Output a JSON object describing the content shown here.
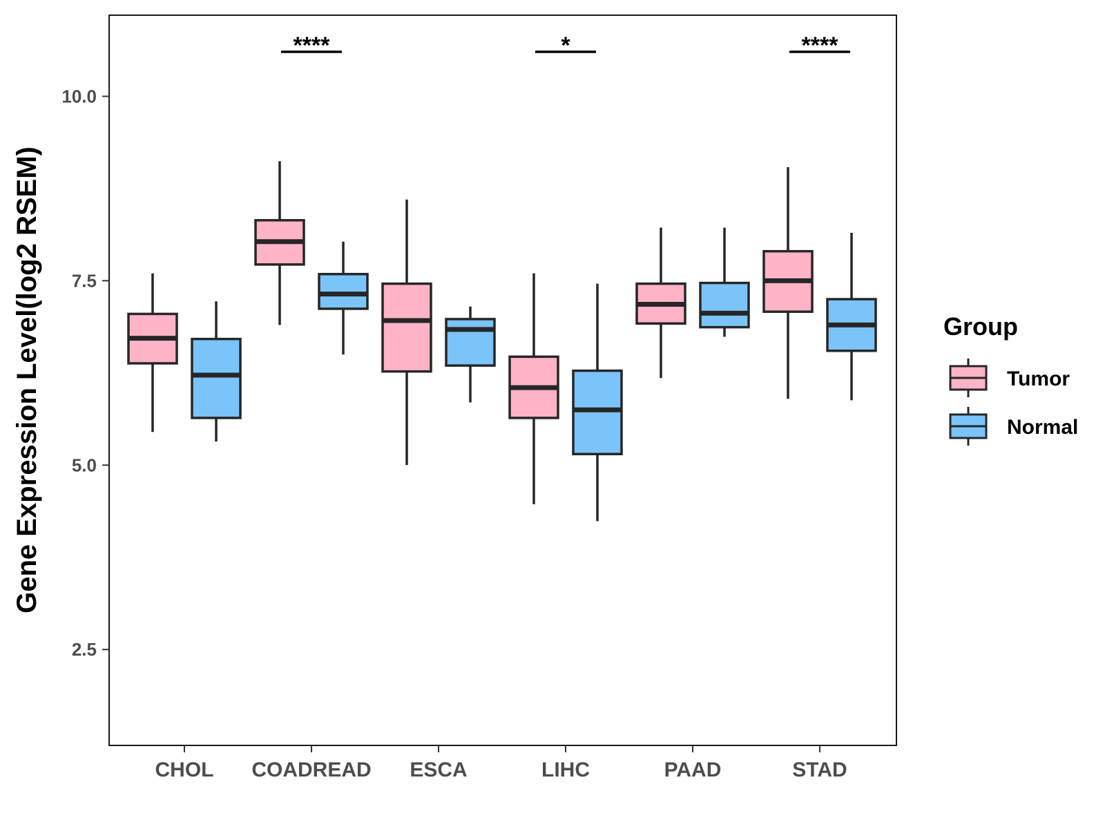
{
  "chart_data": {
    "type": "boxplot",
    "title": "",
    "xlabel": "",
    "ylabel": "Gene Expression Level(log2 RSEM)",
    "ylim": [
      1.2,
      11.1
    ],
    "yticks": [
      2.5,
      5.0,
      7.5,
      10.0
    ],
    "ytick_labels": [
      "2.5",
      "5.0",
      "7.5",
      "10.0"
    ],
    "grid": false,
    "categories": [
      "CHOL",
      "COADREAD",
      "ESCA",
      "LIHC",
      "PAAD",
      "STAD"
    ],
    "legend": {
      "title": "Group",
      "position": "right",
      "entries": [
        {
          "name": "Tumor",
          "color": "#FFB3C6"
        },
        {
          "name": "Normal",
          "color": "#7AC4FA"
        }
      ]
    },
    "series": [
      {
        "name": "Tumor",
        "color": "#FFB3C6",
        "boxes": [
          {
            "whisker_low": 5.45,
            "q1": 6.38,
            "median": 6.72,
            "q3": 7.05,
            "whisker_high": 7.6
          },
          {
            "whisker_low": 6.9,
            "q1": 7.72,
            "median": 8.03,
            "q3": 8.32,
            "whisker_high": 9.12
          },
          {
            "whisker_low": 5.0,
            "q1": 6.27,
            "median": 6.96,
            "q3": 7.46,
            "whisker_high": 8.6
          },
          {
            "whisker_low": 4.47,
            "q1": 5.64,
            "median": 6.05,
            "q3": 6.47,
            "whisker_high": 7.6
          },
          {
            "whisker_low": 6.18,
            "q1": 6.92,
            "median": 7.18,
            "q3": 7.46,
            "whisker_high": 8.22
          },
          {
            "whisker_low": 5.9,
            "q1": 7.08,
            "median": 7.5,
            "q3": 7.9,
            "whisker_high": 9.04
          }
        ]
      },
      {
        "name": "Normal",
        "color": "#7AC4FA",
        "boxes": [
          {
            "whisker_low": 5.32,
            "q1": 5.64,
            "median": 6.22,
            "q3": 6.71,
            "whisker_high": 7.22
          },
          {
            "whisker_low": 6.5,
            "q1": 7.12,
            "median": 7.32,
            "q3": 7.59,
            "whisker_high": 8.03
          },
          {
            "whisker_low": 5.85,
            "q1": 6.35,
            "median": 6.84,
            "q3": 6.98,
            "whisker_high": 7.15
          },
          {
            "whisker_low": 4.24,
            "q1": 5.15,
            "median": 5.75,
            "q3": 6.28,
            "whisker_high": 7.46
          },
          {
            "whisker_low": 6.74,
            "q1": 6.87,
            "median": 7.06,
            "q3": 7.47,
            "whisker_high": 8.22
          },
          {
            "whisker_low": 5.88,
            "q1": 6.55,
            "median": 6.9,
            "q3": 7.25,
            "whisker_high": 8.15
          }
        ]
      }
    ],
    "significance": [
      {
        "category": "COADREAD",
        "label": "****"
      },
      {
        "category": "LIHC",
        "label": "*"
      },
      {
        "category": "STAD",
        "label": "****"
      }
    ]
  }
}
